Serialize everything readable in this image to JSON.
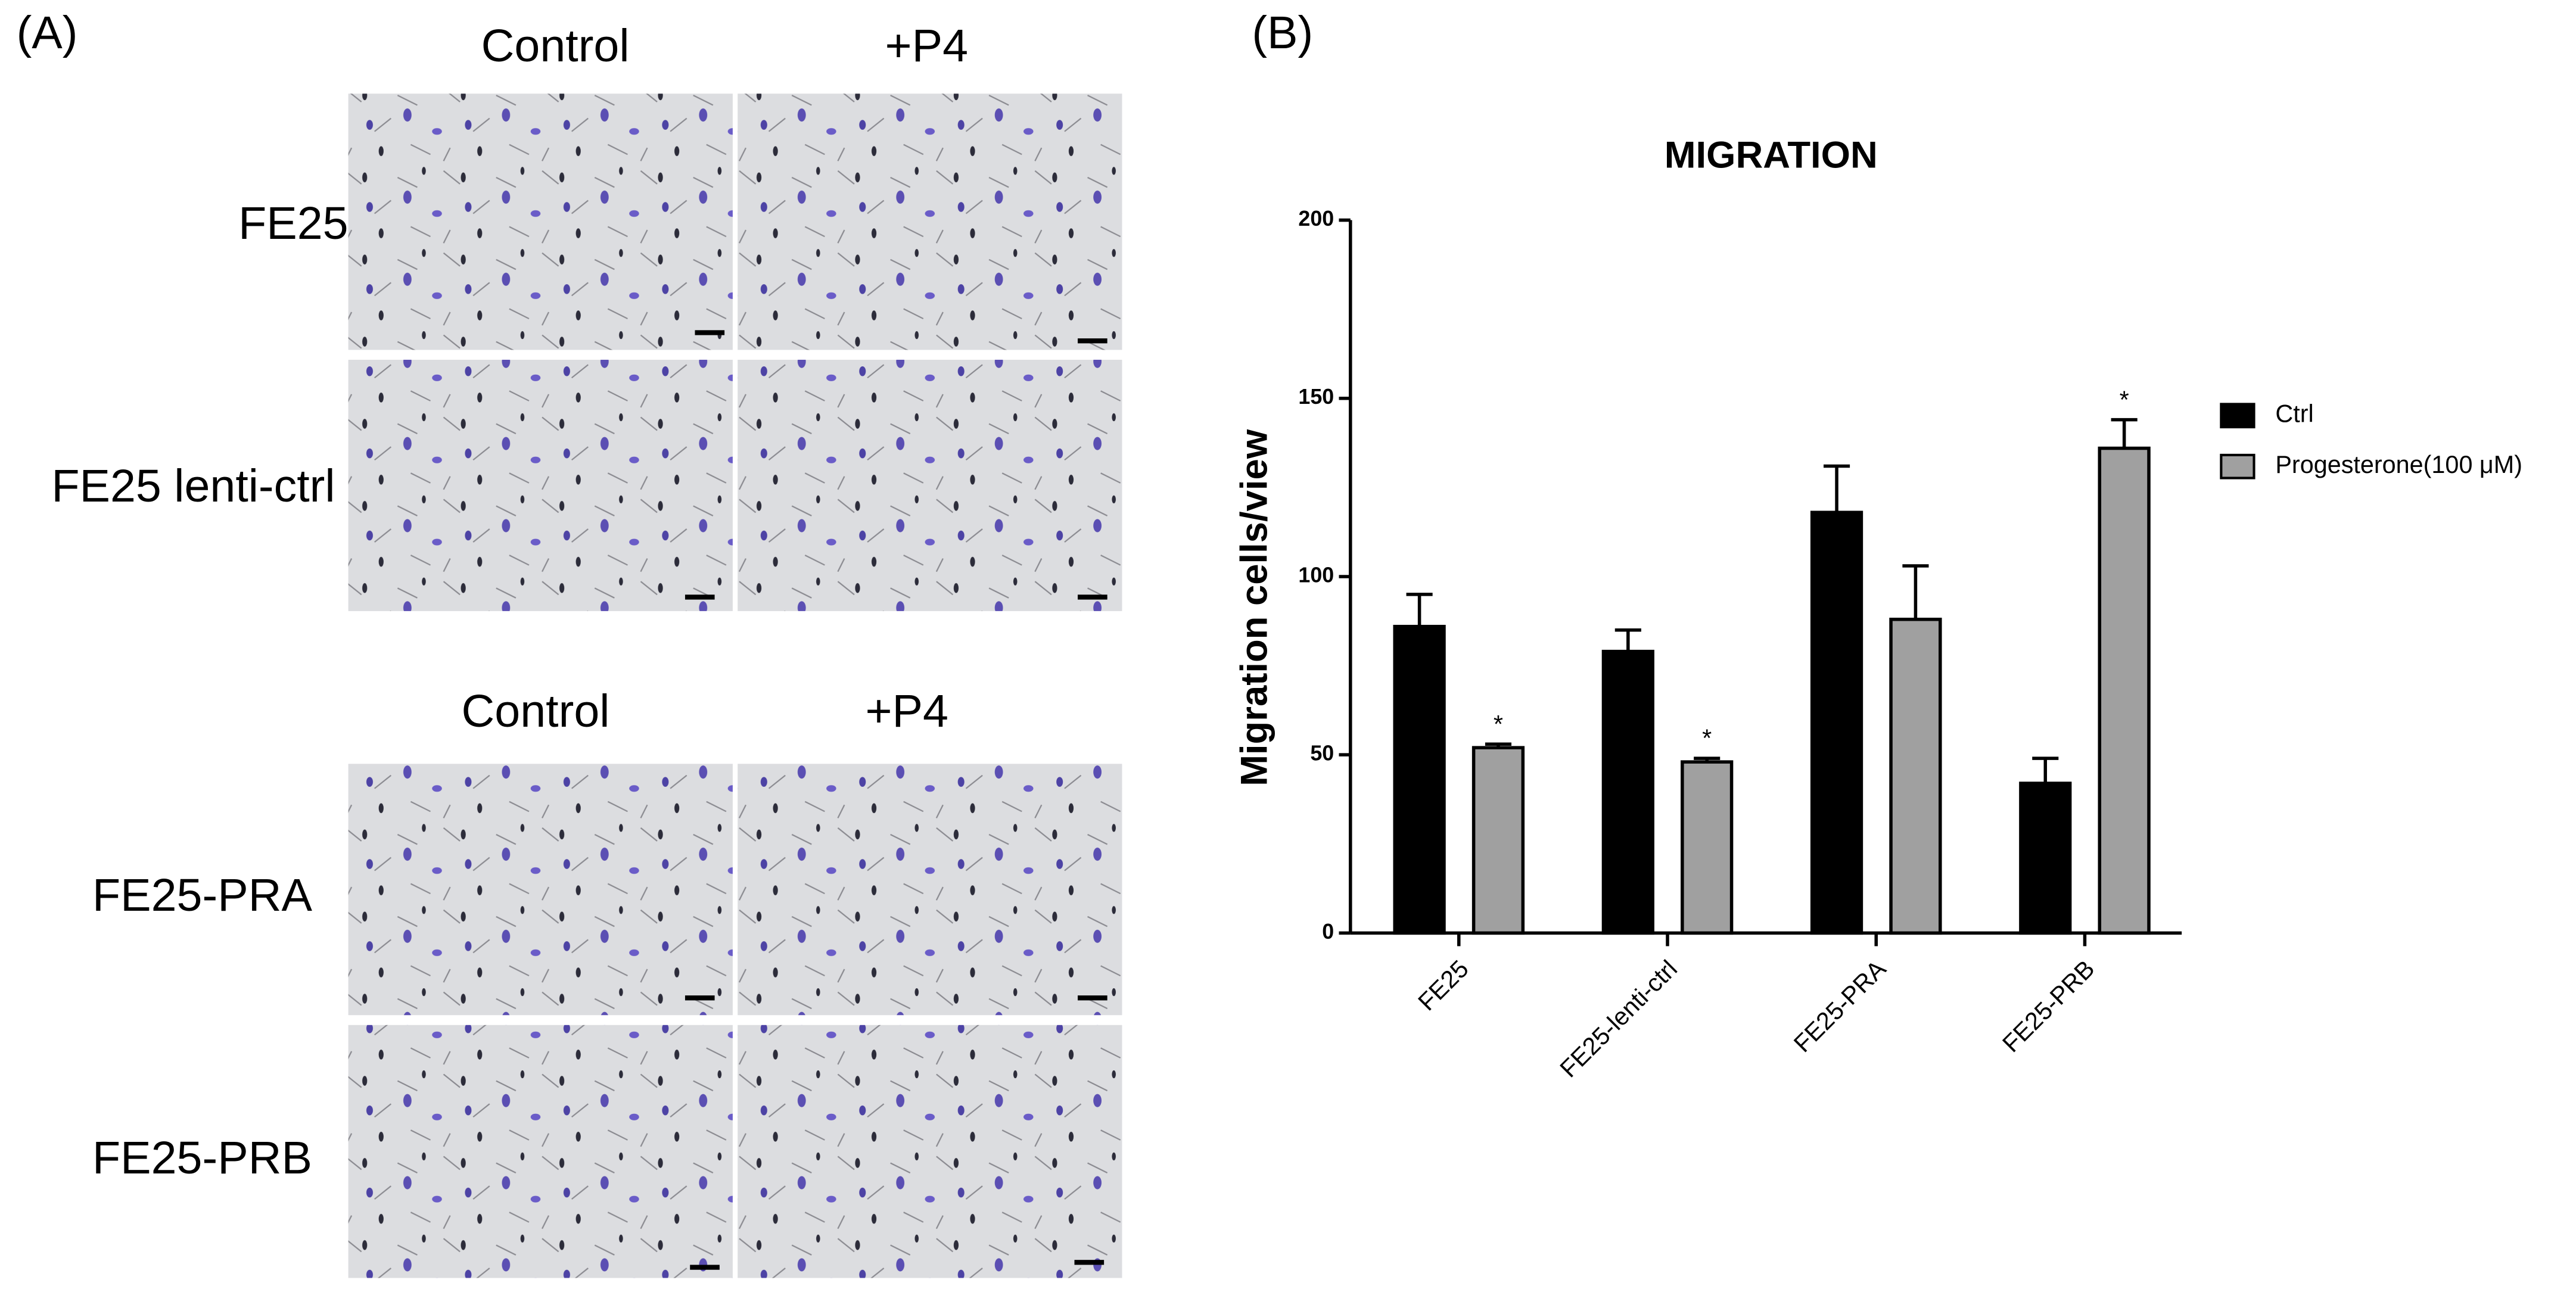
{
  "panel_labels": [
    "(A)",
    "(B)"
  ],
  "panel_a": {
    "top": {
      "columns": [
        "Control",
        "+P4"
      ],
      "rows": [
        "FE25",
        "FE25 lenti-ctrl"
      ]
    },
    "bottom": {
      "columns": [
        "Control",
        "+P4"
      ],
      "rows": [
        "FE25-PRA",
        "FE25-PRB"
      ]
    }
  },
  "chart_data": {
    "type": "bar",
    "title": "MIGRATION",
    "y_label": "Migration cells/view",
    "categories": [
      "FE25",
      "FE25-lenti-ctrl",
      "FE25-PRA",
      "FE25-PRB"
    ],
    "series": [
      {
        "name": "Ctrl",
        "color": "#000000",
        "values": [
          86,
          79,
          118,
          42
        ],
        "errors": [
          9,
          6,
          13,
          7
        ]
      },
      {
        "name": "Progesterone(100 μM)",
        "color": "#a0a0a0",
        "values": [
          52,
          48,
          88,
          136
        ],
        "errors": [
          1,
          1,
          15,
          8
        ],
        "annotations": [
          "*",
          "*",
          null,
          "*"
        ]
      }
    ],
    "ylim": [
      0,
      200
    ],
    "yticks": [
      0,
      50,
      100,
      150,
      200
    ],
    "grid": false,
    "legend": "right"
  }
}
